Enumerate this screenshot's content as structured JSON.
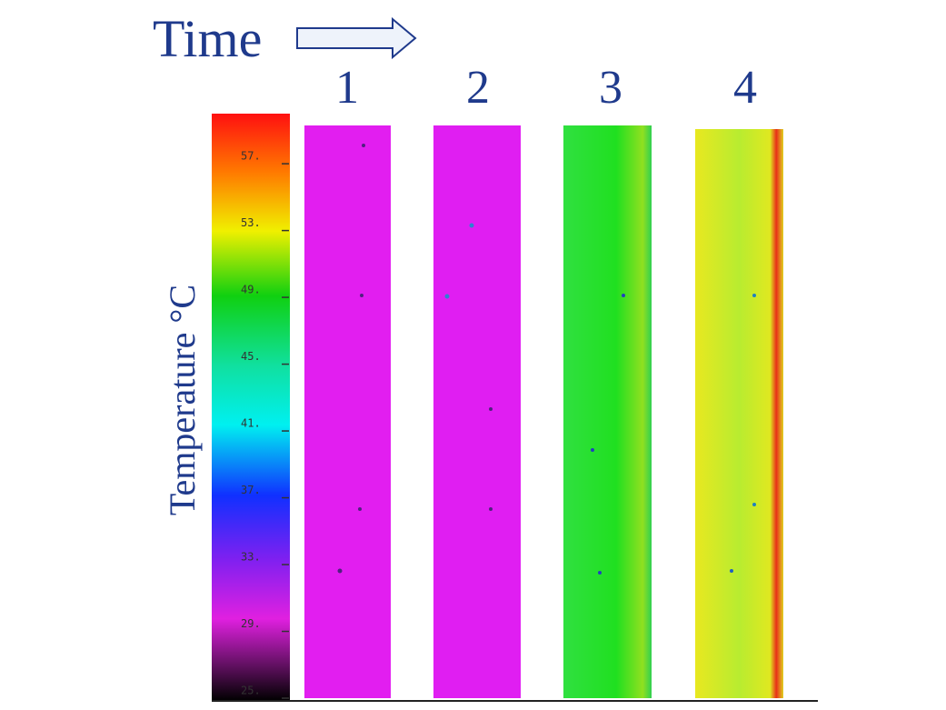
{
  "header": {
    "title": "Time"
  },
  "panels": {
    "labels": [
      "1",
      "2",
      "3",
      "4"
    ]
  },
  "colorbar": {
    "label": "Temperature °C",
    "range": [
      25,
      60
    ],
    "ticks": [
      {
        "value": 57,
        "label": "57."
      },
      {
        "value": 53,
        "label": "53."
      },
      {
        "value": 49,
        "label": "49."
      },
      {
        "value": 45,
        "label": "45."
      },
      {
        "value": 41,
        "label": "41."
      },
      {
        "value": 37,
        "label": "37."
      },
      {
        "value": 33,
        "label": "33."
      },
      {
        "value": 29,
        "label": "29."
      },
      {
        "value": 25,
        "label": "25."
      }
    ]
  }
}
